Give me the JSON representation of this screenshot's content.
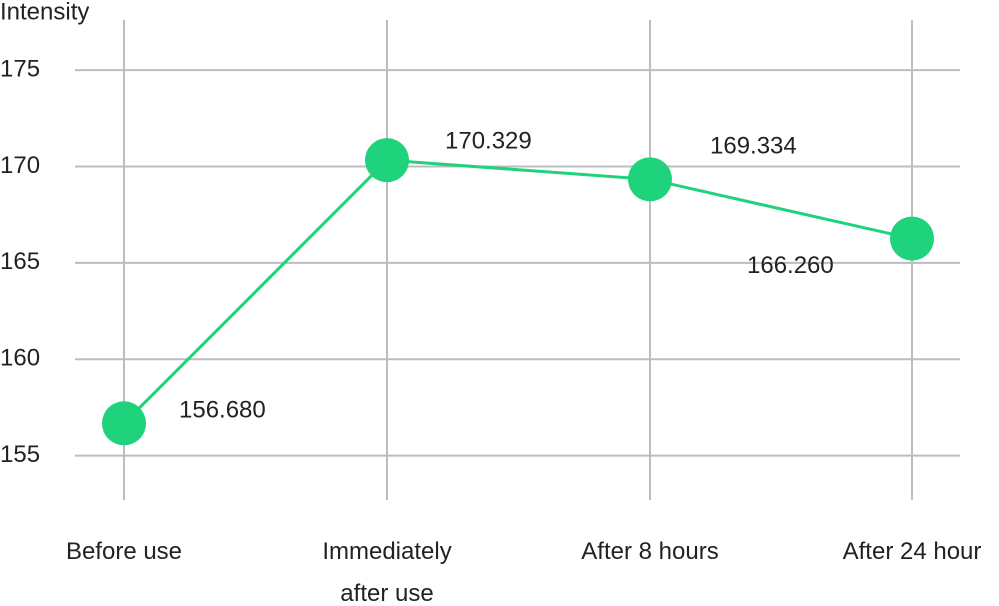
{
  "chart_data": {
    "type": "line",
    "y_label": "Intensity",
    "categories": [
      "Before use",
      "Immediately after use",
      "After 8 hours",
      "After 24 hour"
    ],
    "series": [
      {
        "color": "#1fd27c",
        "values": [
          156.68,
          170.329,
          169.334,
          166.26
        ],
        "value_labels": [
          "156.680",
          "170.329",
          "169.334",
          "166.260"
        ]
      }
    ],
    "ylim": [
      152.7,
      177.6
    ],
    "yticks": [
      155,
      160,
      165,
      170,
      175
    ],
    "grid": true
  }
}
